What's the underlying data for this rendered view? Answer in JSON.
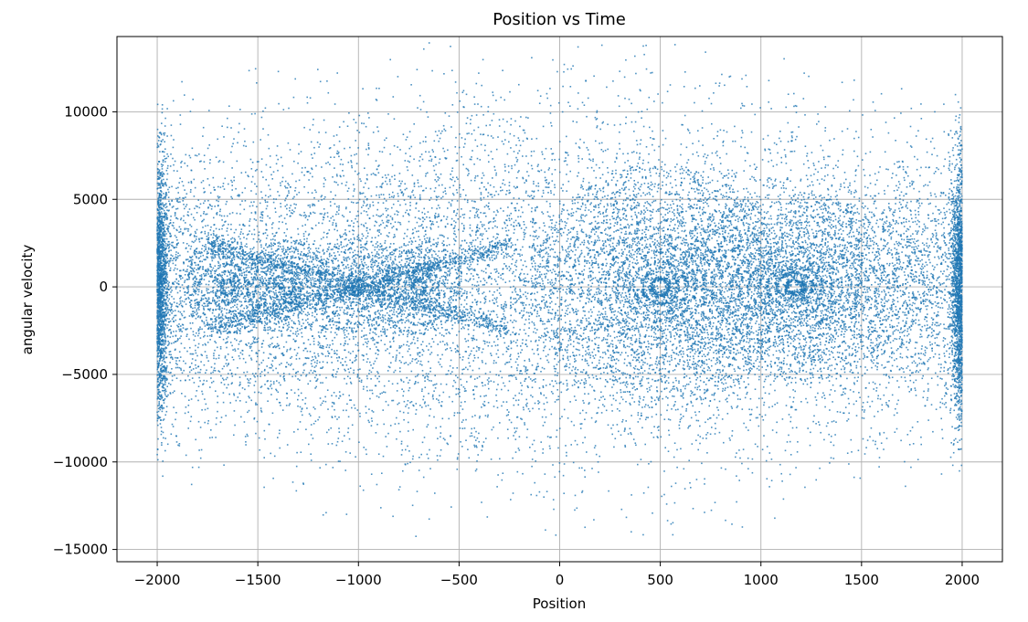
{
  "chart_data": {
    "type": "scatter",
    "title": "Position vs Time",
    "xlabel": "Position",
    "ylabel": "angular velocity",
    "xlim": [
      -2200,
      2200
    ],
    "ylim": [
      -15700,
      14300
    ],
    "xticks": [
      -2000,
      -1500,
      -1000,
      -500,
      0,
      500,
      1000,
      1500,
      2000
    ],
    "xtick_labels": [
      "−2000",
      "−1500",
      "−1000",
      "−500",
      "0",
      "500",
      "1000",
      "1500",
      "2000"
    ],
    "yticks": [
      -15000,
      -10000,
      -5000,
      0,
      5000,
      10000
    ],
    "ytick_labels": [
      "−15000",
      "−10000",
      "−5000",
      "0",
      "5000",
      "10000"
    ],
    "grid": true,
    "legend": "none",
    "color": "#1f77b4",
    "marker_opacity": 0.8,
    "point_count_estimate": 60000,
    "x_domain": [
      -2000,
      2000
    ],
    "features": [
      {
        "center_x": 1170,
        "center_y": 0,
        "note": "concentric orbit island"
      },
      {
        "center_x": 500,
        "center_y": 0,
        "note": "concentric orbit island"
      },
      {
        "center_x": -1650,
        "center_y": 0,
        "note": "small orbit island"
      },
      {
        "center_x": -1350,
        "center_y": 0,
        "note": "small orbit island"
      },
      {
        "center_x": -1000,
        "center_y": 0,
        "note": "hyperbolic crossing"
      },
      {
        "center_x": -700,
        "center_y": 0,
        "note": "small orbit island"
      }
    ],
    "density_walls": [
      -2000,
      2000
    ]
  }
}
